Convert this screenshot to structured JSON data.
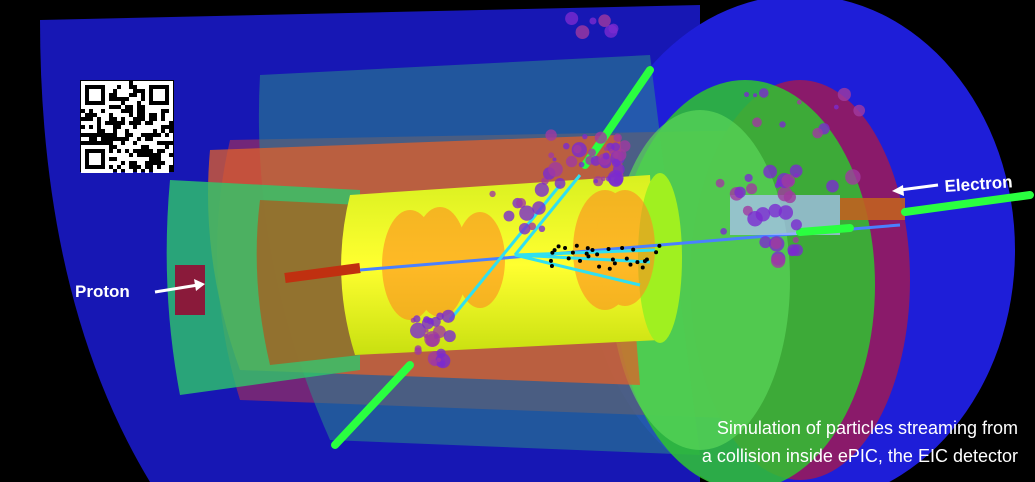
{
  "labels": {
    "proton": "Proton",
    "electron": "Electron"
  },
  "caption": [
    "Simulation of particles streaming from",
    "a collision inside ePIC, the EIC detector"
  ]
}
